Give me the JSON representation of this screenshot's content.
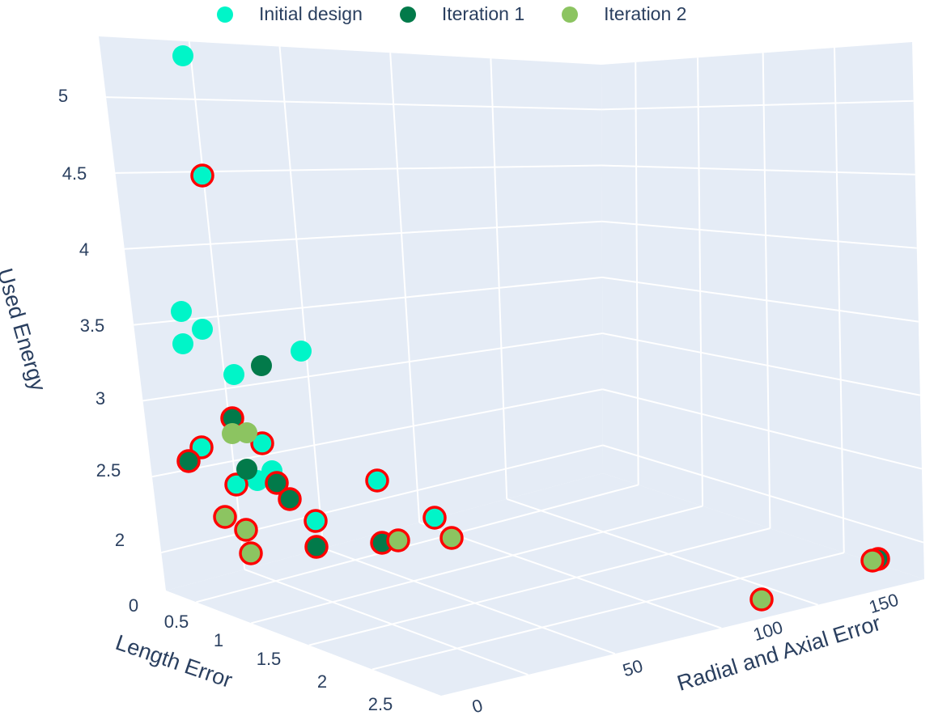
{
  "chart_data": {
    "type": "scatter3d",
    "legend": {
      "placement": "top-center",
      "entries": [
        {
          "name": "Initial design",
          "color": "#00f5c8"
        },
        {
          "name": "Iteration 1",
          "color": "#027a4a"
        },
        {
          "name": "Iteration 2",
          "color": "#8cc461"
        }
      ]
    },
    "axes": {
      "x": {
        "title": "Length Error",
        "ticks": [
          "0",
          "0.5",
          "1",
          "1.5",
          "2",
          "2.5"
        ]
      },
      "y": {
        "title": "Radial and Axial Error",
        "ticks": [
          "0",
          "50",
          "100",
          "150"
        ]
      },
      "z": {
        "title": "Used Energy",
        "ticks": [
          "2",
          "2.5",
          "3",
          "3.5",
          "4",
          "4.5",
          "5"
        ]
      }
    },
    "pareto_outline_color": "#ff0000",
    "points": [
      {
        "series": "Initial design",
        "x": 0.05,
        "y": 2,
        "z": 5.2,
        "pareto": false
      },
      {
        "series": "Initial design",
        "x": 0.15,
        "y": 2,
        "z": 4.5,
        "pareto": true
      },
      {
        "series": "Initial design",
        "x": 0.05,
        "y": 4,
        "z": 3.45,
        "pareto": false
      },
      {
        "series": "Initial design",
        "x": 0.15,
        "y": 4,
        "z": 3.35,
        "pareto": false
      },
      {
        "series": "Initial design",
        "x": 0.05,
        "y": 5,
        "z": 3.25,
        "pareto": false
      },
      {
        "series": "Initial design",
        "x": 0.8,
        "y": 12,
        "z": 3.3,
        "pareto": false
      },
      {
        "series": "Initial design",
        "x": 0.45,
        "y": 4,
        "z": 3.05,
        "pareto": false
      },
      {
        "series": "Initial design",
        "x": 0.25,
        "y": 3,
        "z": 2.6,
        "pareto": true
      },
      {
        "series": "Initial design",
        "x": 0.6,
        "y": 5,
        "z": 2.65,
        "pareto": true
      },
      {
        "series": "Initial design",
        "x": 0.85,
        "y": 4,
        "z": 2.45,
        "pareto": false
      },
      {
        "series": "Initial design",
        "x": 0.8,
        "y": 3,
        "z": 2.4,
        "pareto": false
      },
      {
        "series": "Initial design",
        "x": 0.6,
        "y": 3,
        "z": 2.35,
        "pareto": true
      },
      {
        "series": "Initial design",
        "x": 1.3,
        "y": 3,
        "z": 2.15,
        "pareto": true
      },
      {
        "series": "Initial design",
        "x": 1.5,
        "y": 22,
        "z": 2.3,
        "pareto": true
      },
      {
        "series": "Initial design",
        "x": 2.0,
        "y": 28,
        "z": 2.05,
        "pareto": true
      },
      {
        "series": "Iteration 1",
        "x": 0.65,
        "y": 8,
        "z": 3.2,
        "pareto": false
      },
      {
        "series": "Iteration 1",
        "x": 0.45,
        "y": 4,
        "z": 2.75,
        "pareto": true
      },
      {
        "series": "Iteration 1",
        "x": 0.1,
        "y": 3,
        "z": 2.45,
        "pareto": true
      },
      {
        "series": "Iteration 1",
        "x": 0.7,
        "y": 3,
        "z": 2.45,
        "pareto": false
      },
      {
        "series": "Iteration 1",
        "x": 1.0,
        "y": 3,
        "z": 2.35,
        "pareto": true
      },
      {
        "series": "Iteration 1",
        "x": 1.1,
        "y": 3,
        "z": 2.25,
        "pareto": true
      },
      {
        "series": "Iteration 1",
        "x": 1.35,
        "y": 3,
        "z": 1.95,
        "pareto": true
      },
      {
        "series": "Iteration 1",
        "x": 1.8,
        "y": 10,
        "z": 1.95,
        "pareto": true
      },
      {
        "series": "Iteration 1",
        "x": 2.0,
        "y": 155,
        "z": 1.85,
        "pareto": true
      },
      {
        "series": "Iteration 2",
        "x": 0.45,
        "y": 3,
        "z": 2.7,
        "pareto": false
      },
      {
        "series": "Iteration 2",
        "x": 0.55,
        "y": 3,
        "z": 2.7,
        "pareto": false
      },
      {
        "series": "Iteration 2",
        "x": 0.6,
        "y": 2,
        "z": 2.05,
        "pareto": true
      },
      {
        "series": "Iteration 2",
        "x": 0.8,
        "y": 2,
        "z": 2.0,
        "pareto": true
      },
      {
        "series": "Iteration 2",
        "x": 0.95,
        "y": 2,
        "z": 1.9,
        "pareto": true
      },
      {
        "series": "Iteration 2",
        "x": 1.9,
        "y": 12,
        "z": 1.95,
        "pareto": true
      },
      {
        "series": "Iteration 2",
        "x": 2.2,
        "y": 35,
        "z": 1.95,
        "pareto": true
      },
      {
        "series": "Iteration 2",
        "x": 2.1,
        "y": 150,
        "z": 1.85,
        "pareto": true
      },
      {
        "series": "Iteration 2",
        "x": 2.6,
        "y": 110,
        "z": 1.8,
        "pareto": true
      }
    ]
  }
}
